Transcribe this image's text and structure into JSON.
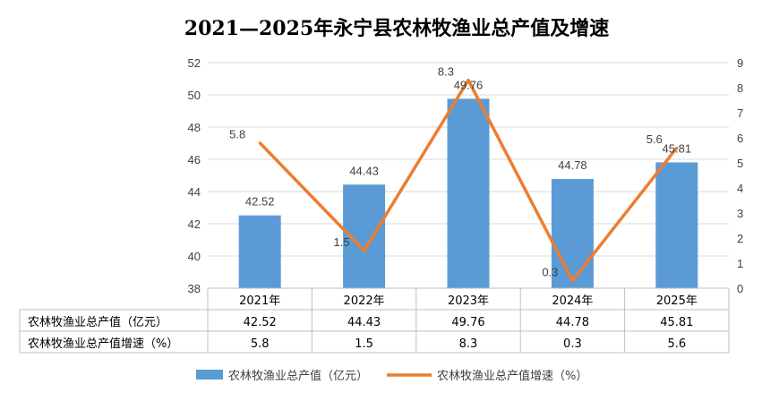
{
  "chart_data": {
    "type": "bar+line",
    "title": "2021—2025年永宁县农林牧渔业总产值及增速",
    "categories": [
      "2021年",
      "2022年",
      "2023年",
      "2024年",
      "2025年"
    ],
    "y_left": {
      "min": 38,
      "max": 52,
      "step": 2
    },
    "y_right": {
      "min": 0,
      "max": 9,
      "step": 1
    },
    "series": [
      {
        "name": "农林牧渔业总产值（亿元）",
        "type": "bar",
        "axis": "left",
        "color": "#5B9BD5",
        "values": [
          42.52,
          44.43,
          49.76,
          44.78,
          45.81
        ],
        "labels": [
          "42.52",
          "44.43",
          "49.76",
          "44.78",
          "45.81"
        ]
      },
      {
        "name": "农林牧渔业总产值增速（%）",
        "type": "line",
        "axis": "right",
        "color": "#ED7D31",
        "values": [
          5.8,
          1.5,
          8.3,
          0.3,
          5.6
        ],
        "labels": [
          "5.8",
          "1.5",
          "8.3",
          "0.3",
          "5.6"
        ]
      }
    ],
    "grid": true,
    "legend_position": "bottom",
    "data_table": true
  }
}
